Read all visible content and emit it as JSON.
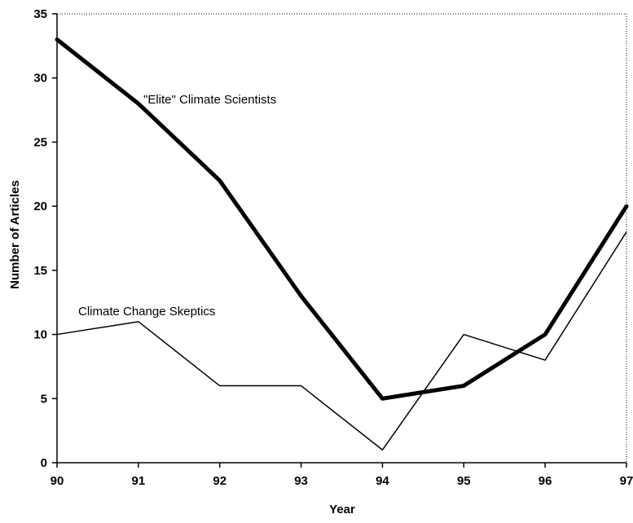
{
  "chart_data": {
    "type": "line",
    "title": "",
    "xlabel": "Year",
    "ylabel": "Number of Articles",
    "categories": [
      "90",
      "91",
      "92",
      "93",
      "94",
      "95",
      "96",
      "97"
    ],
    "ylim": [
      0,
      35
    ],
    "yticks": [
      "0",
      "5",
      "10",
      "15",
      "20",
      "25",
      "30",
      "35"
    ],
    "grid": false,
    "legend": "none",
    "series": [
      {
        "name": "\"Elite\" Climate Scientists",
        "values": [
          33,
          28,
          22,
          13,
          5,
          6,
          10,
          20
        ],
        "color": "#000000",
        "line_weight": "heavy"
      },
      {
        "name": "Climate Change Skeptics",
        "values": [
          10,
          11,
          6,
          6,
          1,
          10,
          8,
          18
        ],
        "color": "#000000",
        "line_weight": "thin"
      }
    ]
  }
}
